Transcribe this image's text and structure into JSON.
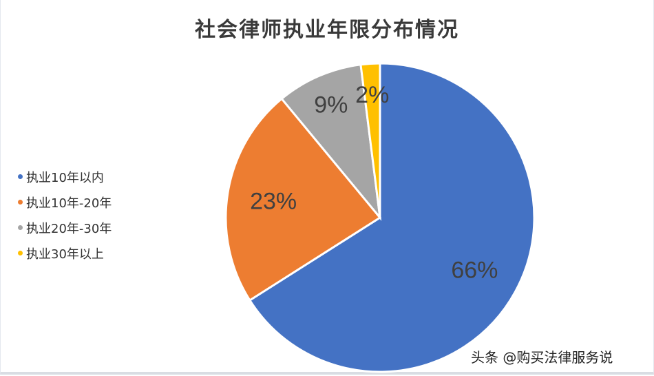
{
  "chart_data": {
    "type": "pie",
    "title": "社会律师执业年限分布情况",
    "start_angle": "12 o'clock, clockwise",
    "legend_position": "left",
    "slices": [
      {
        "label": "执业10年以内",
        "value": 66,
        "display": "66%",
        "color": "#4472C4"
      },
      {
        "label": "执业10年-20年",
        "value": 23,
        "display": "23%",
        "color": "#ED7D31"
      },
      {
        "label": "执业20年-30年",
        "value": 9,
        "display": "9%",
        "color": "#A5A5A5"
      },
      {
        "label": "执业30年以上",
        "value": 2,
        "display": "2%",
        "color": "#FFC000"
      }
    ]
  },
  "watermark": "头条 @购买法律服务说"
}
